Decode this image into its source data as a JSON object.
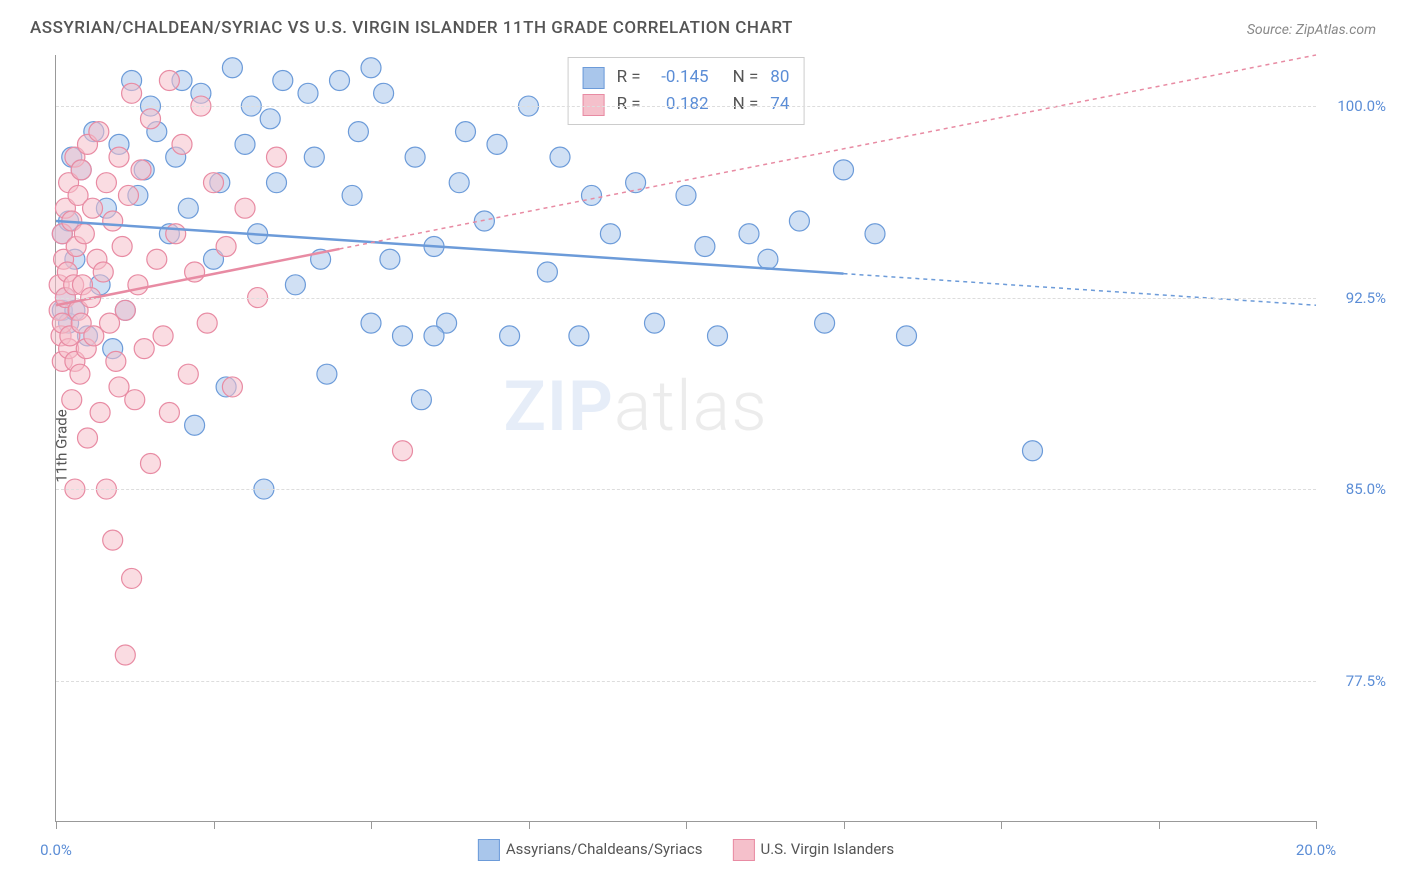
{
  "title": "ASSYRIAN/CHALDEAN/SYRIAC VS U.S. VIRGIN ISLANDER 11TH GRADE CORRELATION CHART",
  "source": "Source: ZipAtlas.com",
  "y_axis_label": "11th Grade",
  "watermark_bold": "ZIP",
  "watermark_light": "atlas",
  "chart": {
    "type": "scatter",
    "background_color": "#ffffff",
    "grid_color": "#dddddd",
    "axis_color": "#999999",
    "tick_label_color": "#5b8dd6",
    "title_color": "#555555",
    "title_fontsize": 17,
    "label_fontsize": 15,
    "xlim": [
      0,
      20
    ],
    "ylim": [
      72,
      102
    ],
    "x_ticks": [
      0,
      2.5,
      5,
      7.5,
      10,
      12.5,
      15,
      17.5,
      20
    ],
    "x_tick_labels": {
      "0": "0.0%",
      "20": "20.0%"
    },
    "y_ticks": [
      77.5,
      85.0,
      92.5,
      100.0
    ],
    "y_tick_labels": [
      "77.5%",
      "85.0%",
      "92.5%",
      "100.0%"
    ],
    "series": [
      {
        "name": "Assyrians/Chaldeans/Syriacs",
        "color_fill": "#a9c6eb",
        "color_stroke": "#6c9bd9",
        "marker_radius": 10,
        "fill_opacity": 0.55,
        "regression": {
          "x1": 0,
          "y1": 95.5,
          "x2": 20,
          "y2": 92.2,
          "dash_from_x": 12.5,
          "stroke_width": 2.5
        },
        "stats": {
          "R": "-0.145",
          "N": "80"
        },
        "points": [
          [
            0.1,
            95.0
          ],
          [
            0.1,
            92.0
          ],
          [
            0.15,
            92.5
          ],
          [
            0.2,
            95.5
          ],
          [
            0.2,
            91.5
          ],
          [
            0.25,
            98.0
          ],
          [
            0.3,
            92.0
          ],
          [
            0.3,
            94.0
          ],
          [
            0.4,
            97.5
          ],
          [
            0.5,
            91.0
          ],
          [
            0.6,
            99.0
          ],
          [
            0.7,
            93.0
          ],
          [
            0.8,
            96.0
          ],
          [
            0.9,
            90.5
          ],
          [
            1.0,
            98.5
          ],
          [
            1.1,
            92.0
          ],
          [
            1.2,
            101.0
          ],
          [
            1.3,
            96.5
          ],
          [
            1.4,
            97.5
          ],
          [
            1.5,
            100.0
          ],
          [
            1.6,
            99.0
          ],
          [
            1.8,
            95.0
          ],
          [
            1.9,
            98.0
          ],
          [
            2.0,
            101.0
          ],
          [
            2.1,
            96.0
          ],
          [
            2.2,
            87.5
          ],
          [
            2.3,
            100.5
          ],
          [
            2.5,
            94.0
          ],
          [
            2.6,
            97.0
          ],
          [
            2.7,
            89.0
          ],
          [
            2.8,
            101.5
          ],
          [
            3.0,
            98.5
          ],
          [
            3.1,
            100.0
          ],
          [
            3.2,
            95.0
          ],
          [
            3.3,
            85.0
          ],
          [
            3.4,
            99.5
          ],
          [
            3.5,
            97.0
          ],
          [
            3.6,
            101.0
          ],
          [
            3.8,
            93.0
          ],
          [
            4.0,
            100.5
          ],
          [
            4.1,
            98.0
          ],
          [
            4.3,
            89.5
          ],
          [
            4.5,
            101.0
          ],
          [
            4.7,
            96.5
          ],
          [
            4.8,
            99.0
          ],
          [
            5.0,
            101.5
          ],
          [
            5.2,
            100.5
          ],
          [
            5.3,
            94.0
          ],
          [
            5.5,
            91.0
          ],
          [
            5.7,
            98.0
          ],
          [
            5.8,
            88.5
          ],
          [
            6.0,
            94.5
          ],
          [
            6.2,
            91.5
          ],
          [
            6.4,
            97.0
          ],
          [
            6.5,
            99.0
          ],
          [
            6.8,
            95.5
          ],
          [
            7.0,
            98.5
          ],
          [
            7.2,
            91.0
          ],
          [
            7.5,
            100.0
          ],
          [
            7.8,
            93.5
          ],
          [
            8.0,
            98.0
          ],
          [
            8.3,
            91.0
          ],
          [
            8.5,
            96.5
          ],
          [
            8.8,
            95.0
          ],
          [
            9.2,
            97.0
          ],
          [
            9.5,
            91.5
          ],
          [
            10.0,
            96.5
          ],
          [
            10.3,
            94.5
          ],
          [
            10.5,
            91.0
          ],
          [
            11.0,
            95.0
          ],
          [
            11.3,
            94.0
          ],
          [
            11.8,
            95.5
          ],
          [
            12.2,
            91.5
          ],
          [
            12.5,
            97.5
          ],
          [
            13.0,
            95.0
          ],
          [
            13.5,
            91.0
          ],
          [
            15.5,
            86.5
          ],
          [
            5.0,
            91.5
          ],
          [
            6.0,
            91.0
          ],
          [
            4.2,
            94.0
          ]
        ]
      },
      {
        "name": "U.S. Virgin Islanders",
        "color_fill": "#f5c0cb",
        "color_stroke": "#e88ba3",
        "marker_radius": 10,
        "fill_opacity": 0.55,
        "regression": {
          "x1": 0,
          "y1": 92.2,
          "x2": 20,
          "y2": 102.0,
          "dash_from_x": 4.5,
          "stroke_width": 2.5
        },
        "stats": {
          "R": "0.182",
          "N": "74"
        },
        "points": [
          [
            0.05,
            92.0
          ],
          [
            0.05,
            93.0
          ],
          [
            0.08,
            91.0
          ],
          [
            0.1,
            95.0
          ],
          [
            0.1,
            91.5
          ],
          [
            0.1,
            90.0
          ],
          [
            0.12,
            94.0
          ],
          [
            0.15,
            92.5
          ],
          [
            0.15,
            96.0
          ],
          [
            0.18,
            93.5
          ],
          [
            0.2,
            90.5
          ],
          [
            0.2,
            97.0
          ],
          [
            0.22,
            91.0
          ],
          [
            0.25,
            95.5
          ],
          [
            0.25,
            88.5
          ],
          [
            0.28,
            93.0
          ],
          [
            0.3,
            98.0
          ],
          [
            0.3,
            90.0
          ],
          [
            0.32,
            94.5
          ],
          [
            0.35,
            92.0
          ],
          [
            0.35,
            96.5
          ],
          [
            0.38,
            89.5
          ],
          [
            0.4,
            91.5
          ],
          [
            0.4,
            97.5
          ],
          [
            0.42,
            93.0
          ],
          [
            0.45,
            95.0
          ],
          [
            0.48,
            90.5
          ],
          [
            0.5,
            98.5
          ],
          [
            0.5,
            87.0
          ],
          [
            0.55,
            92.5
          ],
          [
            0.58,
            96.0
          ],
          [
            0.6,
            91.0
          ],
          [
            0.65,
            94.0
          ],
          [
            0.68,
            99.0
          ],
          [
            0.7,
            88.0
          ],
          [
            0.75,
            93.5
          ],
          [
            0.8,
            97.0
          ],
          [
            0.8,
            85.0
          ],
          [
            0.85,
            91.5
          ],
          [
            0.9,
            95.5
          ],
          [
            0.9,
            83.0
          ],
          [
            0.95,
            90.0
          ],
          [
            1.0,
            98.0
          ],
          [
            1.0,
            89.0
          ],
          [
            1.05,
            94.5
          ],
          [
            1.1,
            78.5
          ],
          [
            1.1,
            92.0
          ],
          [
            1.15,
            96.5
          ],
          [
            1.2,
            81.5
          ],
          [
            1.2,
            100.5
          ],
          [
            1.25,
            88.5
          ],
          [
            1.3,
            93.0
          ],
          [
            1.35,
            97.5
          ],
          [
            1.4,
            90.5
          ],
          [
            1.5,
            99.5
          ],
          [
            1.5,
            86.0
          ],
          [
            1.6,
            94.0
          ],
          [
            1.7,
            91.0
          ],
          [
            1.8,
            101.0
          ],
          [
            1.8,
            88.0
          ],
          [
            1.9,
            95.0
          ],
          [
            2.0,
            98.5
          ],
          [
            2.1,
            89.5
          ],
          [
            2.2,
            93.5
          ],
          [
            2.3,
            100.0
          ],
          [
            2.4,
            91.5
          ],
          [
            2.5,
            97.0
          ],
          [
            2.7,
            94.5
          ],
          [
            2.8,
            89.0
          ],
          [
            3.0,
            96.0
          ],
          [
            3.2,
            92.5
          ],
          [
            3.5,
            98.0
          ],
          [
            0.3,
            85.0
          ],
          [
            5.5,
            86.5
          ]
        ]
      }
    ],
    "stats_box_labels": {
      "R_label": "R =",
      "N_label": "N ="
    }
  }
}
